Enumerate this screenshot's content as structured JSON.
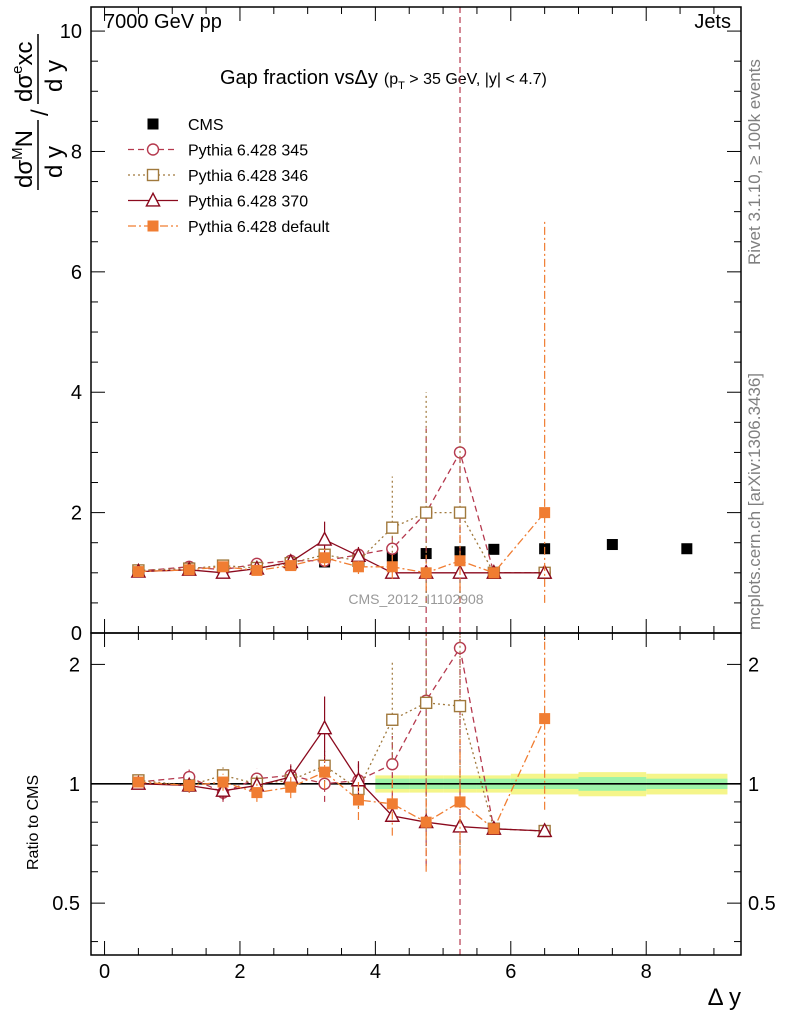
{
  "header": {
    "energy_label": "7000 GeV pp",
    "process_label": "Jets"
  },
  "sidebar": {
    "rivet_label": "Rivet 3.1.10, ≥ 100k events",
    "site_label": "mcplots.cern.ch [arXiv:1306.3436]"
  },
  "watermark": "CMS_2012_I1102908",
  "chart_data": {
    "type": "line",
    "title": "Gap fraction vsΔy",
    "title_note": "(p",
    "title_note_sub": "T",
    "title_note_rest": " > 35 GeV, |y| < 4.7)",
    "ylabel_main": "dσ^M N / dσ^e xc (d y / d y)",
    "ylabel_main_parts": {
      "num1": "dσ",
      "sup1": "M",
      "tail1": "N",
      "den1": "d y",
      "num2": "dσ",
      "sup2": "e",
      "tail2": "xc",
      "den2": "d y",
      "slash": "/"
    },
    "xlabel": "Δ y",
    "ylabel_ratio": "Ratio to CMS",
    "xlim": [
      -0.2,
      9.4
    ],
    "ylim": [
      0,
      10.4
    ],
    "ratio_ylim": [
      0.37,
      2.4
    ],
    "x_ticks": [
      "0",
      "2",
      "4",
      "6",
      "8"
    ],
    "y_ticks": [
      "0",
      "2",
      "4",
      "6",
      "8",
      "10"
    ],
    "ratio_ticks": [
      "0.5",
      "1",
      "2"
    ],
    "legend": [
      "CMS",
      "Pythia 6.428 345",
      "Pythia 6.428 346",
      "Pythia 6.428 370",
      "Pythia 6.428 default"
    ],
    "series": [
      {
        "name": "CMS",
        "color": "#000000",
        "marker": "square-filled",
        "dash": "none",
        "x": [
          0.5,
          1.25,
          1.75,
          2.25,
          2.75,
          3.25,
          3.75,
          4.25,
          4.75,
          5.25,
          5.75,
          6.5,
          7.5,
          8.6
        ],
        "values": [
          1.02,
          1.06,
          1.08,
          1.09,
          1.14,
          1.18,
          1.24,
          1.28,
          1.32,
          1.35,
          1.39,
          1.4,
          1.47,
          1.4
        ]
      },
      {
        "name": "Pythia 6.428 345",
        "color": "#b5394e",
        "marker": "circle",
        "dash": "6,4",
        "x": [
          0.5,
          1.25,
          1.75,
          2.25,
          2.75,
          3.25,
          3.75,
          4.25,
          4.75,
          5.25,
          5.75,
          6.5
        ],
        "values": [
          1.03,
          1.1,
          1.05,
          1.15,
          1.2,
          1.2,
          1.3,
          1.4,
          2.0,
          3.0,
          1.0,
          1.0
        ],
        "err_low": [
          0.02,
          0.05,
          0.05,
          0.06,
          0.08,
          0.1,
          0.1,
          0.2,
          2.0,
          3.0,
          0,
          0
        ],
        "err_high": [
          0.02,
          0.05,
          0.05,
          0.06,
          0.08,
          0.1,
          0.1,
          0.2,
          1.4,
          8.0,
          0,
          0
        ],
        "ratio": [
          1.01,
          1.04,
          0.95,
          1.03,
          1.05,
          1.0,
          1.02,
          1.12,
          1.62,
          2.2,
          0.77,
          0.76
        ],
        "ratio_err_low": [
          0.02,
          0.05,
          0.05,
          0.06,
          0.07,
          0.1,
          0.1,
          0.2,
          1.0,
          2.0,
          0,
          0
        ],
        "ratio_err_high": [
          0.02,
          0.05,
          0.05,
          0.06,
          0.07,
          0.1,
          0.1,
          0.2,
          1.5,
          3.0,
          0,
          0
        ]
      },
      {
        "name": "Pythia 6.428 346",
        "color": "#a0793d",
        "marker": "square",
        "dash": "2,3",
        "x": [
          0.5,
          1.25,
          1.75,
          2.25,
          2.75,
          3.25,
          3.75,
          4.25,
          4.75,
          5.25,
          5.75,
          6.5
        ],
        "values": [
          1.04,
          1.07,
          1.12,
          1.08,
          1.16,
          1.3,
          1.2,
          1.75,
          2.0,
          2.0,
          1.0,
          1.0
        ],
        "err_low": [
          0.02,
          0.04,
          0.05,
          0.05,
          0.07,
          0.12,
          0.12,
          0.5,
          1.5,
          1.5,
          0,
          0
        ],
        "err_high": [
          0.02,
          0.04,
          0.05,
          0.05,
          0.07,
          0.12,
          0.12,
          0.85,
          2.0,
          2.0,
          0,
          0
        ],
        "ratio": [
          1.02,
          0.99,
          1.05,
          1.0,
          1.02,
          1.11,
          0.97,
          1.45,
          1.6,
          1.57,
          0.77,
          0.76
        ],
        "ratio_err_low": [
          0.02,
          0.04,
          0.05,
          0.05,
          0.06,
          0.1,
          0.1,
          0.3,
          0.9,
          0.9,
          0,
          0
        ],
        "ratio_err_high": [
          0.02,
          0.04,
          0.05,
          0.05,
          0.06,
          0.1,
          0.1,
          0.6,
          1.5,
          1.5,
          0,
          0
        ]
      },
      {
        "name": "Pythia 6.428 370",
        "color": "#8b0a1e",
        "marker": "triangle",
        "dash": "none",
        "x": [
          0.5,
          1.25,
          1.75,
          2.25,
          2.75,
          3.25,
          3.75,
          4.25,
          4.75,
          5.25,
          5.75,
          6.5
        ],
        "values": [
          1.02,
          1.05,
          1.0,
          1.07,
          1.18,
          1.55,
          1.28,
          1.0,
          1.0,
          1.0,
          1.0,
          1.0
        ],
        "err_low": [
          0.02,
          0.04,
          0.05,
          0.05,
          0.08,
          0.3,
          0.15,
          0,
          0,
          0,
          0,
          0
        ],
        "err_high": [
          0.02,
          0.04,
          0.05,
          0.05,
          0.08,
          0.3,
          0.15,
          0,
          0,
          0,
          0,
          0
        ],
        "ratio": [
          1.0,
          0.99,
          0.96,
          0.99,
          1.04,
          1.38,
          1.02,
          0.83,
          0.8,
          0.78,
          0.77,
          0.76
        ],
        "ratio_err_low": [
          0.02,
          0.04,
          0.05,
          0.05,
          0.07,
          0.25,
          0.12,
          0,
          0,
          0,
          0,
          0
        ],
        "ratio_err_high": [
          0.02,
          0.04,
          0.05,
          0.05,
          0.07,
          0.28,
          0.12,
          0,
          0,
          0,
          0,
          0
        ]
      },
      {
        "name": "Pythia 6.428 default",
        "color": "#f07d32",
        "marker": "square-filled",
        "dash": "8,3,2,3",
        "x": [
          0.5,
          1.25,
          1.75,
          2.25,
          2.75,
          3.25,
          3.75,
          4.25,
          4.75,
          5.25,
          5.75,
          6.5
        ],
        "values": [
          1.02,
          1.05,
          1.1,
          1.04,
          1.12,
          1.25,
          1.1,
          1.1,
          1.0,
          1.2,
          1.0,
          2.0
        ],
        "err_low": [
          0.02,
          0.04,
          0.05,
          0.05,
          0.07,
          0.15,
          0.12,
          0.2,
          0.3,
          0.5,
          0,
          1.5
        ],
        "err_high": [
          0.02,
          0.04,
          0.05,
          0.05,
          0.07,
          0.15,
          0.12,
          0.2,
          0.3,
          0.6,
          0,
          4.85
        ],
        "ratio": [
          1.01,
          0.99,
          1.01,
          0.95,
          0.98,
          1.07,
          0.91,
          0.89,
          0.8,
          0.9,
          0.77,
          1.46
        ],
        "ratio_err_low": [
          0.02,
          0.04,
          0.05,
          0.05,
          0.06,
          0.1,
          0.1,
          0.15,
          0.2,
          0.3,
          0,
          0.6
        ],
        "ratio_err_high": [
          0.02,
          0.04,
          0.05,
          0.05,
          0.06,
          0.1,
          0.1,
          0.15,
          0.2,
          0.4,
          0,
          1.5
        ]
      }
    ],
    "band_bins": [
      {
        "lo": 4.0,
        "hi": 4.5,
        "inner": 0.03,
        "outer": 0.05
      },
      {
        "lo": 4.5,
        "hi": 5.0,
        "inner": 0.03,
        "outer": 0.05
      },
      {
        "lo": 5.0,
        "hi": 5.5,
        "inner": 0.03,
        "outer": 0.05
      },
      {
        "lo": 5.5,
        "hi": 6.0,
        "inner": 0.03,
        "outer": 0.05
      },
      {
        "lo": 6.0,
        "hi": 7.0,
        "inner": 0.03,
        "outer": 0.06
      },
      {
        "lo": 7.0,
        "hi": 8.0,
        "inner": 0.04,
        "outer": 0.07
      },
      {
        "lo": 8.0,
        "hi": 9.2,
        "inner": 0.03,
        "outer": 0.06
      }
    ]
  }
}
